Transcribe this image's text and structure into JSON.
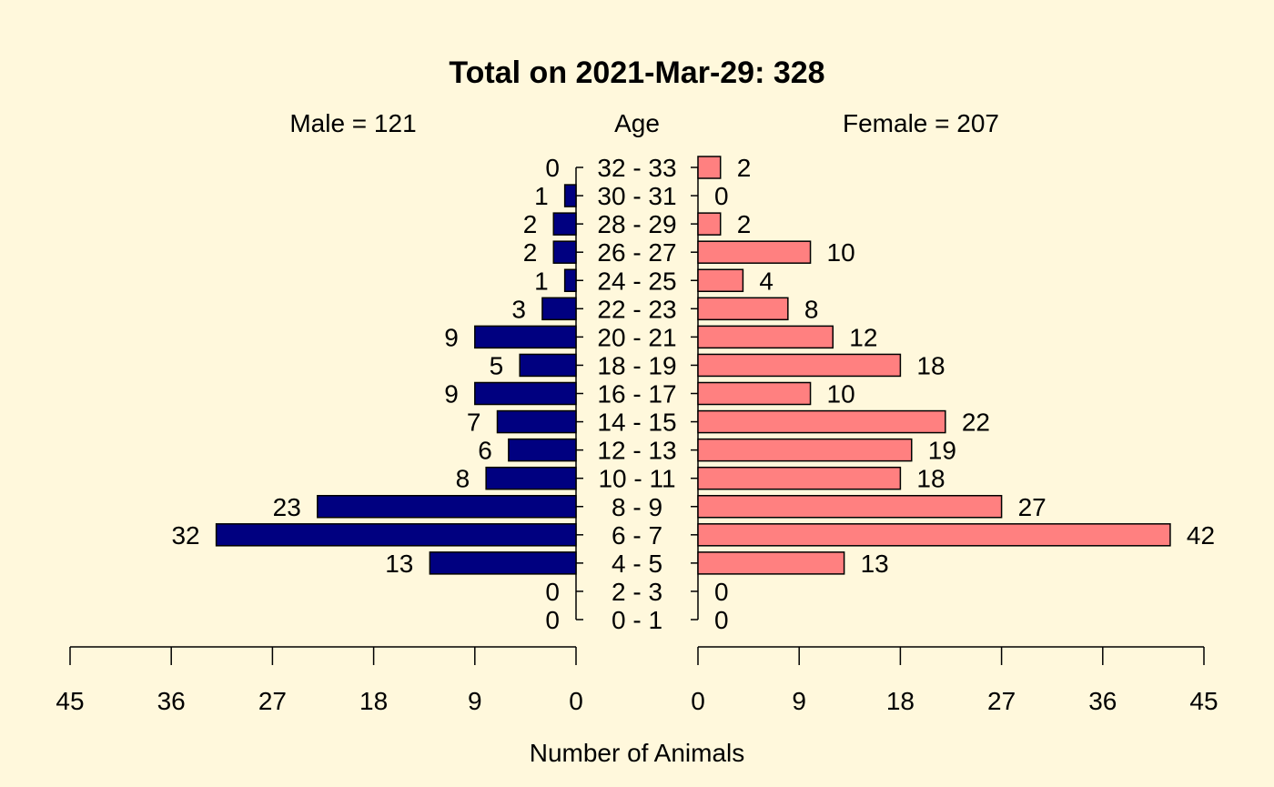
{
  "chart_data": {
    "type": "bar",
    "title": "Total on 2021-Mar-29: 328",
    "center_label": "Age",
    "xlabel": "Number of Animals",
    "categories": [
      "0 - 1",
      "2 - 3",
      "4 - 5",
      "6 - 7",
      "8 - 9",
      "10 - 11",
      "12 - 13",
      "14 - 15",
      "16 - 17",
      "18 - 19",
      "20 - 21",
      "22 - 23",
      "24 - 25",
      "26 - 27",
      "28 - 29",
      "30 - 31",
      "32 - 33"
    ],
    "series": [
      {
        "name": "Male = 121",
        "side": "left",
        "color": "#000080",
        "values": [
          0,
          0,
          13,
          32,
          23,
          8,
          6,
          7,
          9,
          5,
          9,
          3,
          1,
          2,
          2,
          1,
          0
        ]
      },
      {
        "name": "Female = 207",
        "side": "right",
        "color": "#FF8080",
        "values": [
          0,
          0,
          13,
          42,
          27,
          18,
          19,
          22,
          10,
          18,
          12,
          8,
          4,
          10,
          2,
          0,
          2
        ]
      }
    ],
    "xlim": [
      0,
      45
    ],
    "xticks": [
      "0",
      "9",
      "18",
      "27",
      "36",
      "45"
    ],
    "background": "#FFF8DC"
  }
}
